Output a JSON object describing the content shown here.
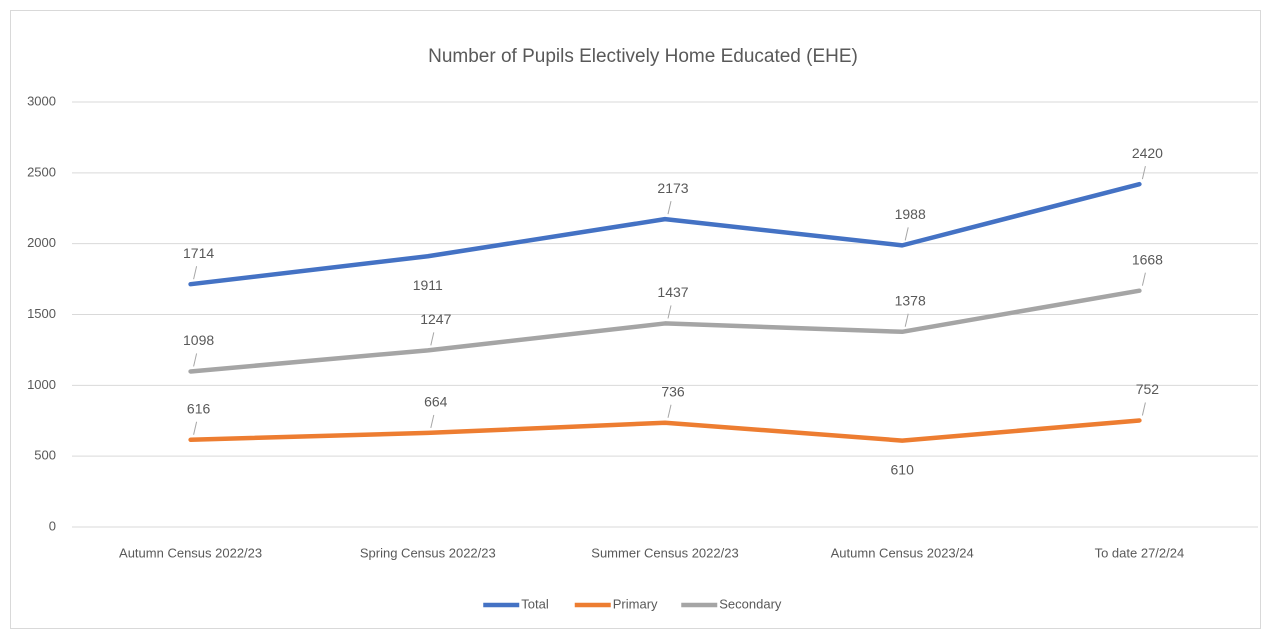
{
  "chart_data": {
    "type": "line",
    "title": "Number of Pupils Electively Home Educated (EHE)",
    "categories": [
      "Autumn Census 2022/23",
      "Spring Census 2022/23",
      "Summer Census 2022/23",
      "Autumn Census 2023/24",
      "To date 27/2/24"
    ],
    "series": [
      {
        "name": "Total",
        "color": "#4472c4",
        "values": [
          1714,
          1911,
          2173,
          1988,
          2420
        ]
      },
      {
        "name": "Primary",
        "color": "#ed7d31",
        "values": [
          616,
          664,
          736,
          610,
          752
        ]
      },
      {
        "name": "Secondary",
        "color": "#a5a5a5",
        "values": [
          1098,
          1247,
          1437,
          1378,
          1668
        ]
      }
    ],
    "ylim": [
      0,
      3000
    ],
    "yticks": [
      0,
      500,
      1000,
      1500,
      2000,
      2500,
      3000
    ],
    "grid": true,
    "legend": "bottom"
  }
}
